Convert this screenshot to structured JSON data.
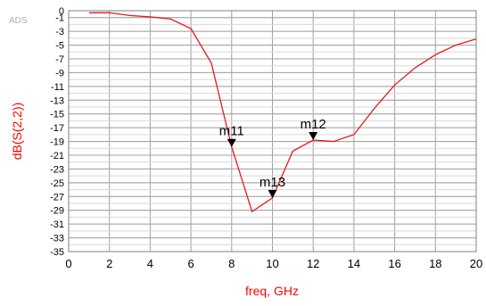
{
  "watermark": "ADS",
  "chart_data": {
    "type": "line",
    "xlabel": "freq, GHz",
    "ylabel": "dB(S(2,2))",
    "xlim": [
      0,
      20
    ],
    "ylim": [
      -35,
      0
    ],
    "x_ticks": [
      "0",
      "2",
      "4",
      "6",
      "8",
      "10",
      "12",
      "14",
      "16",
      "18",
      "20"
    ],
    "y_ticks": [
      "0",
      "-1",
      "-3",
      "-5",
      "-7",
      "-9",
      "-11",
      "-13",
      "-15",
      "-17",
      "-19",
      "-21",
      "-23",
      "-25",
      "-27",
      "-29",
      "-31",
      "-33",
      "-35"
    ],
    "grid": true,
    "colors": {
      "axis_label": "#ff0000",
      "series": "#e8191c",
      "grid": "#a0a0a0",
      "marker": "#000000"
    },
    "series": [
      {
        "x": [
          1,
          2,
          3,
          4,
          5,
          6,
          7,
          8,
          9,
          10,
          11,
          12,
          13,
          14,
          15,
          16,
          17,
          18,
          19,
          20
        ],
        "y": [
          -0.3,
          -0.3,
          -0.7,
          -0.9,
          -1.2,
          -2.6,
          -7.6,
          -19.8,
          -29.2,
          -27.2,
          -20.4,
          -18.8,
          -19.0,
          -18.0,
          -14.2,
          -10.8,
          -8.3,
          -6.4,
          -5.0,
          -4.1
        ]
      }
    ],
    "markers": [
      {
        "label": "m11",
        "x": 8,
        "y": -19.8
      },
      {
        "label": "m12",
        "x": 12,
        "y": -18.8
      },
      {
        "label": "m13",
        "x": 10,
        "y": -27.2
      }
    ]
  }
}
